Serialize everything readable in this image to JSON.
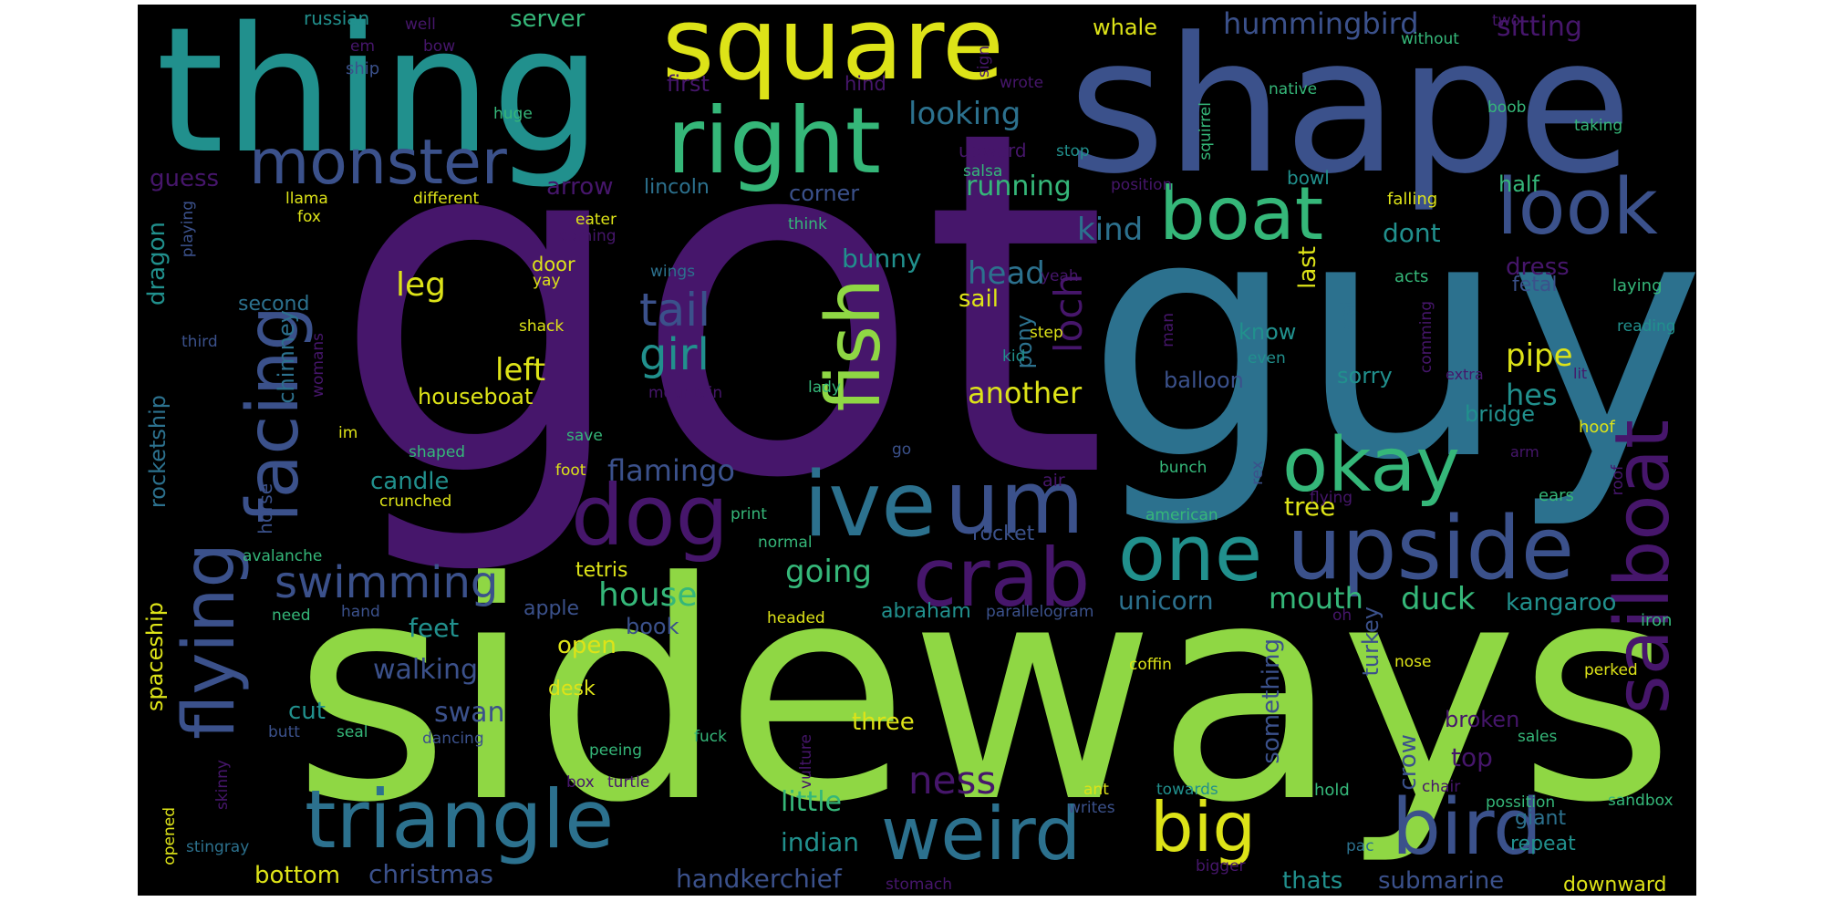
{
  "palette": {
    "purple": "#46166b",
    "indigo": "#3b518b",
    "blue": "#2c718e",
    "teal": "#21908d",
    "green": "#35b779",
    "lime": "#8fd744",
    "yellow": "#dde318"
  },
  "words": [
    {
      "text": "got",
      "color": "purple",
      "orientation": "horizontal"
    },
    {
      "text": "guy",
      "color": "blue",
      "orientation": "horizontal"
    },
    {
      "text": "sideways",
      "color": "lime",
      "orientation": "horizontal"
    },
    {
      "text": "shape",
      "color": "indigo",
      "orientation": "horizontal"
    },
    {
      "text": "thing",
      "color": "teal",
      "orientation": "horizontal"
    },
    {
      "text": "square",
      "color": "yellow",
      "orientation": "horizontal"
    },
    {
      "text": "right",
      "color": "green",
      "orientation": "horizontal"
    },
    {
      "text": "monster",
      "color": "indigo",
      "orientation": "horizontal"
    },
    {
      "text": "boat",
      "color": "green",
      "orientation": "horizontal"
    },
    {
      "text": "look",
      "color": "indigo",
      "orientation": "horizontal"
    },
    {
      "text": "fish",
      "color": "lime",
      "orientation": "vertical"
    },
    {
      "text": "facing",
      "color": "indigo",
      "orientation": "vertical"
    },
    {
      "text": "flying",
      "color": "indigo",
      "orientation": "vertical"
    },
    {
      "text": "dog",
      "color": "purple",
      "orientation": "horizontal"
    },
    {
      "text": "ive",
      "color": "blue",
      "orientation": "horizontal"
    },
    {
      "text": "um",
      "color": "indigo",
      "orientation": "horizontal"
    },
    {
      "text": "okay",
      "color": "green",
      "orientation": "horizontal"
    },
    {
      "text": "upside",
      "color": "indigo",
      "orientation": "horizontal"
    },
    {
      "text": "one",
      "color": "teal",
      "orientation": "horizontal"
    },
    {
      "text": "crab",
      "color": "purple",
      "orientation": "horizontal"
    },
    {
      "text": "sailboat",
      "color": "purple",
      "orientation": "vertical"
    },
    {
      "text": "triangle",
      "color": "blue",
      "orientation": "horizontal"
    },
    {
      "text": "weird",
      "color": "blue",
      "orientation": "horizontal"
    },
    {
      "text": "big",
      "color": "yellow",
      "orientation": "horizontal"
    },
    {
      "text": "bird",
      "color": "indigo",
      "orientation": "horizontal"
    },
    {
      "text": "swimming",
      "color": "indigo",
      "orientation": "horizontal"
    },
    {
      "text": "tail",
      "color": "indigo",
      "orientation": "horizontal"
    },
    {
      "text": "girl",
      "color": "teal",
      "orientation": "horizontal"
    },
    {
      "text": "leg",
      "color": "yellow",
      "orientation": "horizontal"
    },
    {
      "text": "left",
      "color": "yellow",
      "orientation": "horizontal"
    },
    {
      "text": "loch",
      "color": "purple",
      "orientation": "vertical"
    },
    {
      "text": "kind",
      "color": "blue",
      "orientation": "horizontal"
    },
    {
      "text": "head",
      "color": "blue",
      "orientation": "horizontal"
    },
    {
      "text": "another",
      "color": "yellow",
      "orientation": "horizontal"
    },
    {
      "text": "flamingo",
      "color": "indigo",
      "orientation": "horizontal"
    },
    {
      "text": "running",
      "color": "green",
      "orientation": "horizontal"
    },
    {
      "text": "looking",
      "color": "blue",
      "orientation": "horizontal"
    },
    {
      "text": "arrow",
      "color": "purple",
      "orientation": "horizontal"
    },
    {
      "text": "guess",
      "color": "purple",
      "orientation": "horizontal"
    },
    {
      "text": "hummingbird",
      "color": "indigo",
      "orientation": "horizontal"
    },
    {
      "text": "sitting",
      "color": "purple",
      "orientation": "horizontal"
    },
    {
      "text": "server",
      "color": "green",
      "orientation": "horizontal"
    },
    {
      "text": "russian",
      "color": "teal",
      "orientation": "horizontal"
    },
    {
      "text": "whale",
      "color": "yellow",
      "orientation": "horizontal"
    },
    {
      "text": "first",
      "color": "purple",
      "orientation": "horizontal"
    },
    {
      "text": "ship",
      "color": "indigo",
      "orientation": "horizontal"
    },
    {
      "text": "lincoln",
      "color": "blue",
      "orientation": "horizontal"
    },
    {
      "text": "corner",
      "color": "indigo",
      "orientation": "horizontal"
    },
    {
      "text": "bunny",
      "color": "teal",
      "orientation": "horizontal"
    },
    {
      "text": "dragon",
      "color": "teal",
      "orientation": "vertical"
    },
    {
      "text": "second",
      "color": "blue",
      "orientation": "horizontal"
    },
    {
      "text": "chimney",
      "color": "blue",
      "orientation": "vertical"
    },
    {
      "text": "houseboat",
      "color": "yellow",
      "orientation": "horizontal"
    },
    {
      "text": "candle",
      "color": "teal",
      "orientation": "horizontal"
    },
    {
      "text": "rocketship",
      "color": "blue",
      "orientation": "vertical"
    },
    {
      "text": "horse",
      "color": "indigo",
      "orientation": "vertical"
    },
    {
      "text": "house",
      "color": "green",
      "orientation": "horizontal"
    },
    {
      "text": "going",
      "color": "green",
      "orientation": "horizontal"
    },
    {
      "text": "ness",
      "color": "purple",
      "orientation": "horizontal"
    },
    {
      "text": "little",
      "color": "green",
      "orientation": "horizontal"
    },
    {
      "text": "indian",
      "color": "teal",
      "orientation": "horizontal"
    },
    {
      "text": "handkerchief",
      "color": "indigo",
      "orientation": "horizontal"
    },
    {
      "text": "christmas",
      "color": "indigo",
      "orientation": "horizontal"
    },
    {
      "text": "bottom",
      "color": "yellow",
      "orientation": "horizontal"
    },
    {
      "text": "walking",
      "color": "indigo",
      "orientation": "horizontal"
    },
    {
      "text": "swan",
      "color": "indigo",
      "orientation": "horizontal"
    },
    {
      "text": "feet",
      "color": "teal",
      "orientation": "horizontal"
    },
    {
      "text": "open",
      "color": "yellow",
      "orientation": "horizontal"
    },
    {
      "text": "desk",
      "color": "yellow",
      "orientation": "horizontal"
    },
    {
      "text": "cut",
      "color": "teal",
      "orientation": "horizontal"
    },
    {
      "text": "spaceship",
      "color": "yellow",
      "orientation": "vertical"
    },
    {
      "text": "mouth",
      "color": "green",
      "orientation": "horizontal"
    },
    {
      "text": "unicorn",
      "color": "blue",
      "orientation": "horizontal"
    },
    {
      "text": "abraham",
      "color": "teal",
      "orientation": "horizontal"
    },
    {
      "text": "duck",
      "color": "green",
      "orientation": "horizontal"
    },
    {
      "text": "kangaroo",
      "color": "teal",
      "orientation": "horizontal"
    },
    {
      "text": "tree",
      "color": "yellow",
      "orientation": "horizontal"
    },
    {
      "text": "pipe",
      "color": "yellow",
      "orientation": "horizontal"
    },
    {
      "text": "hes",
      "color": "teal",
      "orientation": "horizontal"
    },
    {
      "text": "bridge",
      "color": "teal",
      "orientation": "horizontal"
    },
    {
      "text": "half",
      "color": "green",
      "orientation": "horizontal"
    },
    {
      "text": "dress",
      "color": "purple",
      "orientation": "horizontal"
    },
    {
      "text": "fetal",
      "color": "indigo",
      "orientation": "horizontal"
    },
    {
      "text": "dont",
      "color": "teal",
      "orientation": "horizontal"
    },
    {
      "text": "last",
      "color": "yellow",
      "orientation": "vertical"
    },
    {
      "text": "cat",
      "color": "blue",
      "orientation": "vertical"
    },
    {
      "text": "know",
      "color": "teal",
      "orientation": "horizontal"
    },
    {
      "text": "sorry",
      "color": "teal",
      "orientation": "horizontal"
    },
    {
      "text": "balloon",
      "color": "indigo",
      "orientation": "horizontal"
    },
    {
      "text": "sail",
      "color": "yellow",
      "orientation": "horizontal"
    },
    {
      "text": "pony",
      "color": "blue",
      "orientation": "vertical"
    },
    {
      "text": "something",
      "color": "indigo",
      "orientation": "vertical"
    },
    {
      "text": "turkey",
      "color": "indigo",
      "orientation": "vertical"
    },
    {
      "text": "crow",
      "color": "indigo",
      "orientation": "vertical"
    },
    {
      "text": "top",
      "color": "purple",
      "orientation": "horizontal"
    },
    {
      "text": "broken",
      "color": "purple",
      "orientation": "horizontal"
    },
    {
      "text": "three",
      "color": "yellow",
      "orientation": "horizontal"
    },
    {
      "text": "thats",
      "color": "teal",
      "orientation": "horizontal"
    },
    {
      "text": "submarine",
      "color": "indigo",
      "orientation": "horizontal"
    },
    {
      "text": "repeat",
      "color": "teal",
      "orientation": "horizontal"
    },
    {
      "text": "giant",
      "color": "blue",
      "orientation": "horizontal"
    },
    {
      "text": "downward",
      "color": "yellow",
      "orientation": "horizontal"
    },
    {
      "text": "book",
      "color": "indigo",
      "orientation": "horizontal"
    },
    {
      "text": "apple",
      "color": "indigo",
      "orientation": "horizontal"
    },
    {
      "text": "tetris",
      "color": "yellow",
      "orientation": "horizontal"
    },
    {
      "text": "rocket",
      "color": "indigo",
      "orientation": "horizontal"
    },
    {
      "text": "upward",
      "color": "purple",
      "orientation": "horizontal"
    },
    {
      "text": "bowl",
      "color": "teal",
      "orientation": "horizontal"
    },
    {
      "text": "falling",
      "color": "yellow",
      "orientation": "horizontal"
    },
    {
      "text": "laying",
      "color": "green",
      "orientation": "horizontal"
    },
    {
      "text": "reading",
      "color": "teal",
      "orientation": "horizontal"
    },
    {
      "text": "extra",
      "color": "purple",
      "orientation": "horizontal"
    },
    {
      "text": "lit",
      "color": "purple",
      "orientation": "horizontal"
    },
    {
      "text": "hoof",
      "color": "yellow",
      "orientation": "horizontal"
    },
    {
      "text": "acts",
      "color": "green",
      "orientation": "horizontal"
    },
    {
      "text": "arm",
      "color": "purple",
      "orientation": "horizontal"
    },
    {
      "text": "ears",
      "color": "green",
      "orientation": "horizontal"
    },
    {
      "text": "roof",
      "color": "purple",
      "orientation": "vertical"
    },
    {
      "text": "iron",
      "color": "green",
      "orientation": "horizontal"
    },
    {
      "text": "perked",
      "color": "yellow",
      "orientation": "horizontal"
    },
    {
      "text": "nose",
      "color": "yellow",
      "orientation": "horizontal"
    },
    {
      "text": "sales",
      "color": "green",
      "orientation": "horizontal"
    },
    {
      "text": "possition",
      "color": "green",
      "orientation": "horizontal"
    },
    {
      "text": "sandbox",
      "color": "green",
      "orientation": "horizontal"
    },
    {
      "text": "pac",
      "color": "blue",
      "orientation": "horizontal"
    },
    {
      "text": "bigger",
      "color": "purple",
      "orientation": "horizontal"
    },
    {
      "text": "stomach",
      "color": "purple",
      "orientation": "horizontal"
    },
    {
      "text": "hold",
      "color": "green",
      "orientation": "horizontal"
    },
    {
      "text": "chair",
      "color": "purple",
      "orientation": "horizontal"
    },
    {
      "text": "oh",
      "color": "purple",
      "orientation": "horizontal"
    },
    {
      "text": "writes",
      "color": "indigo",
      "orientation": "horizontal"
    },
    {
      "text": "towards",
      "color": "teal",
      "orientation": "horizontal"
    },
    {
      "text": "ant",
      "color": "yellow",
      "orientation": "horizontal"
    },
    {
      "text": "coffin",
      "color": "yellow",
      "orientation": "horizontal"
    },
    {
      "text": "fuck",
      "color": "green",
      "orientation": "horizontal"
    },
    {
      "text": "peeing",
      "color": "green",
      "orientation": "horizontal"
    },
    {
      "text": "vulture",
      "color": "purple",
      "orientation": "vertical"
    },
    {
      "text": "turtle",
      "color": "purple",
      "orientation": "horizontal"
    },
    {
      "text": "box",
      "color": "purple",
      "orientation": "horizontal"
    },
    {
      "text": "headed",
      "color": "yellow",
      "orientation": "horizontal"
    },
    {
      "text": "parallelogram",
      "color": "indigo",
      "orientation": "horizontal"
    },
    {
      "text": "normal",
      "color": "green",
      "orientation": "horizontal"
    },
    {
      "text": "print",
      "color": "green",
      "orientation": "horizontal"
    },
    {
      "text": "air",
      "color": "purple",
      "orientation": "horizontal"
    },
    {
      "text": "american",
      "color": "green",
      "orientation": "horizontal"
    },
    {
      "text": "bunch",
      "color": "green",
      "orientation": "horizontal"
    },
    {
      "text": "flying",
      "color": "purple",
      "orientation": "horizontal"
    },
    {
      "text": "rex",
      "color": "indigo",
      "orientation": "vertical"
    },
    {
      "text": "go",
      "color": "indigo",
      "orientation": "horizontal"
    },
    {
      "text": "foot",
      "color": "yellow",
      "orientation": "horizontal"
    },
    {
      "text": "save",
      "color": "green",
      "orientation": "horizontal"
    },
    {
      "text": "shaped",
      "color": "green",
      "orientation": "horizontal"
    },
    {
      "text": "crunched",
      "color": "yellow",
      "orientation": "horizontal"
    },
    {
      "text": "avalanche",
      "color": "green",
      "orientation": "horizontal"
    },
    {
      "text": "need",
      "color": "green",
      "orientation": "horizontal"
    },
    {
      "text": "hand",
      "color": "indigo",
      "orientation": "horizontal"
    },
    {
      "text": "butt",
      "color": "indigo",
      "orientation": "horizontal"
    },
    {
      "text": "seal",
      "color": "green",
      "orientation": "horizontal"
    },
    {
      "text": "dancing",
      "color": "indigo",
      "orientation": "horizontal"
    },
    {
      "text": "skinny",
      "color": "purple",
      "orientation": "vertical"
    },
    {
      "text": "opened",
      "color": "yellow",
      "orientation": "vertical"
    },
    {
      "text": "stingray",
      "color": "blue",
      "orientation": "horizontal"
    },
    {
      "text": "im",
      "color": "yellow",
      "orientation": "horizontal"
    },
    {
      "text": "womans",
      "color": "purple",
      "orientation": "vertical"
    },
    {
      "text": "mountain",
      "color": "purple",
      "orientation": "horizontal"
    },
    {
      "text": "lady",
      "color": "green",
      "orientation": "horizontal"
    },
    {
      "text": "kid",
      "color": "teal",
      "orientation": "horizontal"
    },
    {
      "text": "step",
      "color": "yellow",
      "orientation": "horizontal"
    },
    {
      "text": "man",
      "color": "purple",
      "orientation": "vertical"
    },
    {
      "text": "yeah",
      "color": "purple",
      "orientation": "horizontal"
    },
    {
      "text": "even",
      "color": "teal",
      "orientation": "horizontal"
    },
    {
      "text": "comming",
      "color": "purple",
      "orientation": "vertical"
    },
    {
      "text": "think",
      "color": "green",
      "orientation": "horizontal"
    },
    {
      "text": "coming",
      "color": "purple",
      "orientation": "horizontal"
    },
    {
      "text": "eater",
      "color": "yellow",
      "orientation": "horizontal"
    },
    {
      "text": "wings",
      "color": "blue",
      "orientation": "horizontal"
    },
    {
      "text": "yay",
      "color": "yellow",
      "orientation": "horizontal"
    },
    {
      "text": "shack",
      "color": "yellow",
      "orientation": "horizontal"
    },
    {
      "text": "door",
      "color": "yellow",
      "orientation": "horizontal"
    },
    {
      "text": "third",
      "color": "indigo",
      "orientation": "horizontal"
    },
    {
      "text": "playing",
      "color": "indigo",
      "orientation": "vertical"
    },
    {
      "text": "fox",
      "color": "yellow",
      "orientation": "horizontal"
    },
    {
      "text": "llama",
      "color": "yellow",
      "orientation": "horizontal"
    },
    {
      "text": "different",
      "color": "yellow",
      "orientation": "horizontal"
    },
    {
      "text": "salsa",
      "color": "green",
      "orientation": "horizontal"
    },
    {
      "text": "position",
      "color": "purple",
      "orientation": "horizontal"
    },
    {
      "text": "squirrel",
      "color": "green",
      "orientation": "vertical"
    },
    {
      "text": "stop",
      "color": "teal",
      "orientation": "horizontal"
    },
    {
      "text": "huge",
      "color": "green",
      "orientation": "horizontal"
    },
    {
      "text": "hind",
      "color": "purple",
      "orientation": "horizontal"
    },
    {
      "text": "wrote",
      "color": "purple",
      "orientation": "horizontal"
    },
    {
      "text": "sign",
      "color": "purple",
      "orientation": "vertical"
    },
    {
      "text": "native",
      "color": "green",
      "orientation": "horizontal"
    },
    {
      "text": "boob",
      "color": "green",
      "orientation": "horizontal"
    },
    {
      "text": "taking",
      "color": "green",
      "orientation": "horizontal"
    },
    {
      "text": "without",
      "color": "green",
      "orientation": "horizontal"
    },
    {
      "text": "two",
      "color": "purple",
      "orientation": "horizontal"
    },
    {
      "text": "well",
      "color": "purple",
      "orientation": "horizontal"
    },
    {
      "text": "bow",
      "color": "purple",
      "orientation": "horizontal"
    },
    {
      "text": "em",
      "color": "purple",
      "orientation": "horizontal"
    }
  ]
}
